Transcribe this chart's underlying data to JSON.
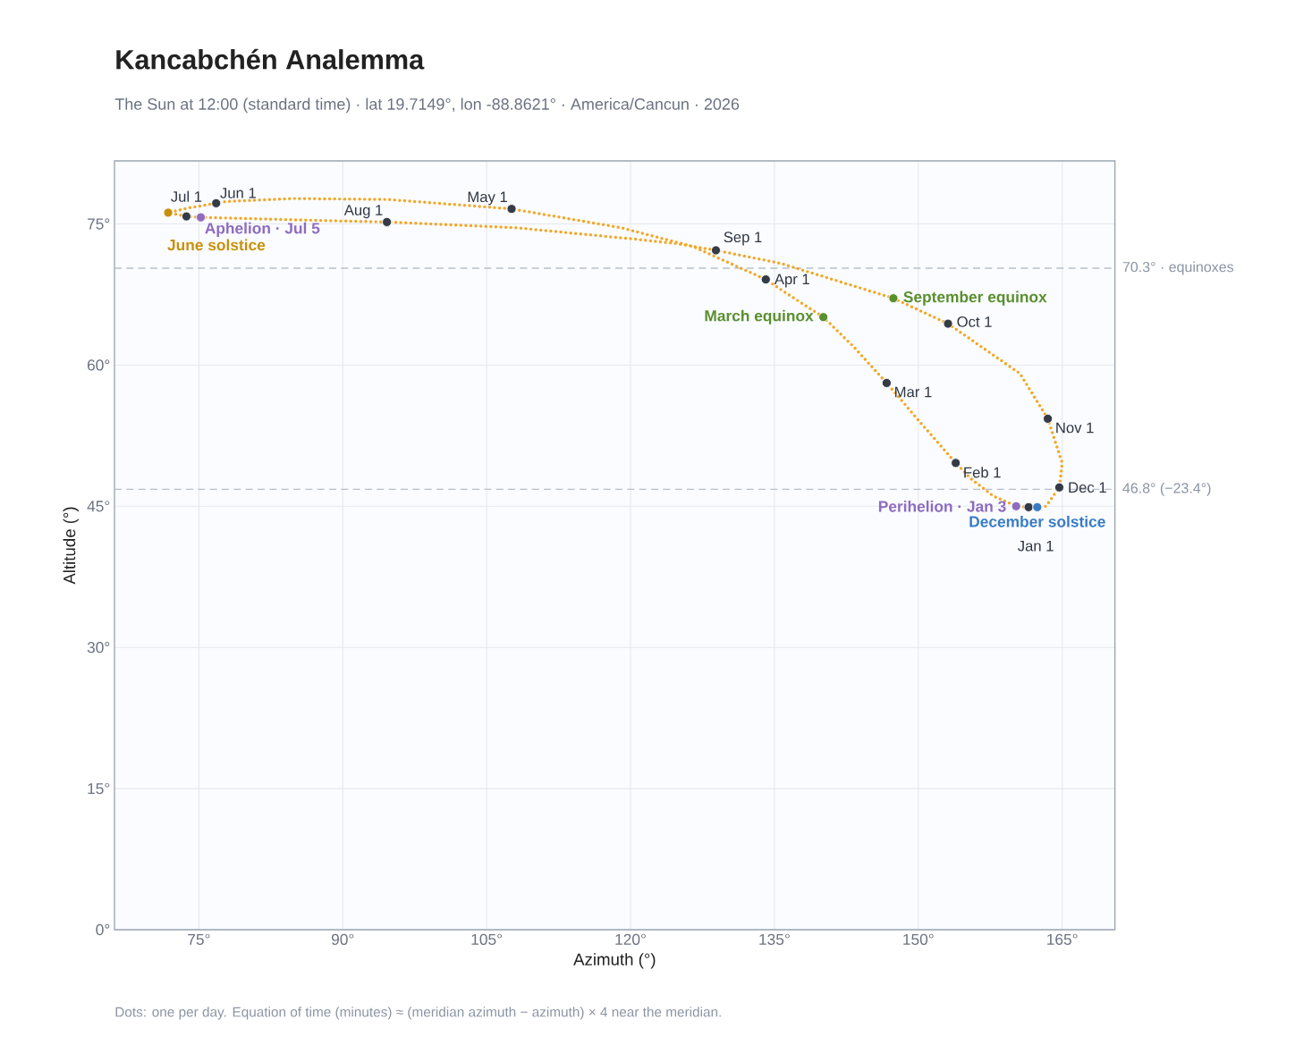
{
  "chart_data": {
    "type": "line",
    "title": "Kancabchén Analemma",
    "subtitle": "The Sun at 12:00 (standard time) · lat 19.7149°, lon -88.8621° · America/Cancun · 2026",
    "xlabel": "Azimuth (°)",
    "ylabel": "Altitude (°)",
    "xlim": [
      66.2,
      170.5
    ],
    "ylim": [
      0,
      81.7
    ],
    "xticks": [
      {
        "value": 75,
        "label": "75°"
      },
      {
        "value": 90,
        "label": "90°"
      },
      {
        "value": 105,
        "label": "105°"
      },
      {
        "value": 120,
        "label": "120°"
      },
      {
        "value": 135,
        "label": "135°"
      },
      {
        "value": 150,
        "label": "150°"
      },
      {
        "value": 165,
        "label": "165°"
      }
    ],
    "yticks": [
      {
        "value": 0,
        "label": "0°"
      },
      {
        "value": 15,
        "label": "15°"
      },
      {
        "value": 30,
        "label": "30°"
      },
      {
        "value": 45,
        "label": "45°"
      },
      {
        "value": 60,
        "label": "60°"
      },
      {
        "value": 75,
        "label": "75°"
      }
    ],
    "grid": true,
    "series": [
      {
        "type": "line",
        "color": "#f5a623",
        "line_style": "dotted",
        "x": [
          161.5,
          160.2,
          157.8,
          155.4,
          153.9,
          150.3,
          146.7,
          143.3,
          140.1,
          136.3,
          134.1,
          126.5,
          119.0,
          107.6,
          94.7,
          84.7,
          78.0,
          76.8,
          73.9,
          71.8,
          73.7,
          75.2,
          86.4,
          94.6,
          108.0,
          120.3,
          124.9,
          128.9,
          135.7,
          147.4,
          153.1,
          160.6,
          163.5,
          165.0,
          164.7,
          163.3,
          162.4
        ],
        "values": [
          44.9,
          45.0,
          46.1,
          48.0,
          49.6,
          53.8,
          58.1,
          61.9,
          65.1,
          67.6,
          69.1,
          72.6,
          74.6,
          76.6,
          77.6,
          77.7,
          77.4,
          77.2,
          76.7,
          76.2,
          75.8,
          75.7,
          75.4,
          75.2,
          74.6,
          73.4,
          72.9,
          72.2,
          70.8,
          67.1,
          64.4,
          59.1,
          54.3,
          49.6,
          47.0,
          45.0,
          44.9
        ]
      },
      {
        "type": "scatter",
        "color": "#343a46",
        "x": [
          161.5,
          153.9,
          146.7,
          134.1,
          107.6,
          76.8,
          73.7,
          94.6,
          128.9,
          153.1,
          163.5,
          164.7
        ],
        "values": [
          44.9,
          49.6,
          58.1,
          69.1,
          76.6,
          77.2,
          75.8,
          75.2,
          72.2,
          64.4,
          54.3,
          47.0
        ]
      },
      {
        "type": "scatter",
        "name": "March equinox",
        "color": "#5a8f2e",
        "x": [
          140.1
        ],
        "values": [
          65.1
        ]
      },
      {
        "type": "scatter",
        "name": "September equinox",
        "color": "#5a8f2e",
        "x": [
          147.4
        ],
        "values": [
          67.1
        ]
      },
      {
        "type": "scatter",
        "name": "June solstice",
        "color": "#c8900a",
        "x": [
          71.8
        ],
        "values": [
          76.2
        ]
      },
      {
        "type": "scatter",
        "name": "December solstice",
        "color": "#3a7cc4",
        "x": [
          162.4
        ],
        "values": [
          44.9
        ]
      },
      {
        "type": "scatter",
        "name": "Perihelion · Jan 3",
        "color": "#8e6bbf",
        "x": [
          160.2
        ],
        "values": [
          45.0
        ]
      },
      {
        "type": "scatter",
        "name": "Aphelion · Jul 5",
        "color": "#8e6bbf",
        "x": [
          75.2
        ],
        "values": [
          75.7
        ]
      }
    ],
    "ref_lines": [
      {
        "axis": "y",
        "value": 70.3,
        "label": "70.3° · equinoxes",
        "color": "#b8c0cc",
        "line_style": "dashed"
      },
      {
        "axis": "y",
        "value": 46.8,
        "label": "46.8° (−23.4°)",
        "color": "#b8c0cc",
        "line_style": "dashed"
      }
    ],
    "annotations": [
      {
        "text": "Jan 1",
        "x": 161.5,
        "y": 44.9
      },
      {
        "text": "Feb 1",
        "x": 153.9,
        "y": 49.6
      },
      {
        "text": "Mar 1",
        "x": 146.7,
        "y": 58.1
      },
      {
        "text": "Apr 1",
        "x": 134.1,
        "y": 69.1
      },
      {
        "text": "May 1",
        "x": 107.6,
        "y": 76.6
      },
      {
        "text": "Jun 1",
        "x": 76.8,
        "y": 77.2
      },
      {
        "text": "Jul 1",
        "x": 73.7,
        "y": 75.8
      },
      {
        "text": "Aug 1",
        "x": 94.6,
        "y": 75.2
      },
      {
        "text": "Sep 1",
        "x": 128.9,
        "y": 72.2
      },
      {
        "text": "Oct 1",
        "x": 153.1,
        "y": 64.4
      },
      {
        "text": "Nov 1",
        "x": 163.5,
        "y": 54.3
      },
      {
        "text": "Dec 1",
        "x": 164.7,
        "y": 47.0
      },
      "Dots: one per day. Equation of time (minutes) ≈ (meridian azimuth − azimuth) × 4 near the meridian."
    ]
  }
}
